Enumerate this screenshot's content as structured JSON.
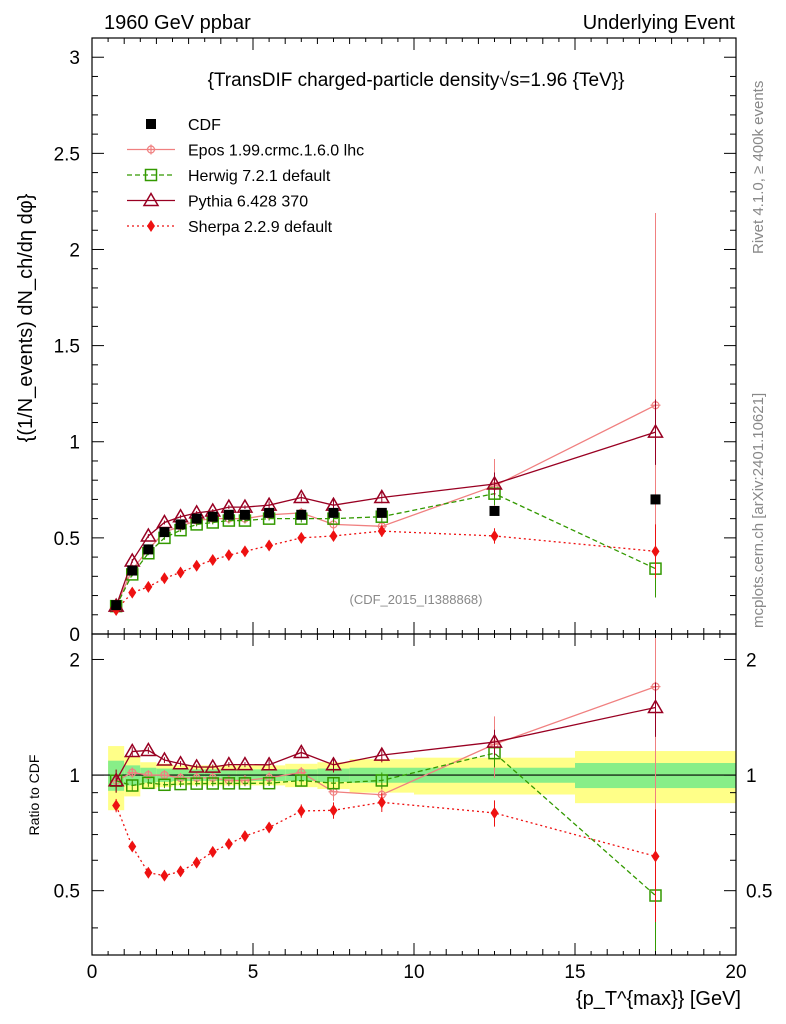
{
  "header": {
    "left": "1960 GeV ppbar",
    "right": "Underlying Event"
  },
  "side_labels": {
    "rivet": "Rivet 4.1.0, ≥ 400k events",
    "mcplots": "mcplots.cern.ch [arXiv:2401.10621]"
  },
  "chart_data": {
    "type": "line",
    "title": "{TransDIF charged-particle density√s=1.96 {TeV}}",
    "watermark": "(CDF_2015_I1388868)",
    "ylabel_main": "{(1/N_events) dN_ch/dη dφ}",
    "ylabel_ratio": "Ratio to CDF",
    "xlabel": "{p_T^{max}} [GeV]",
    "xlim": [
      0,
      20
    ],
    "ylim_main": [
      0,
      3.1
    ],
    "ylim_ratio": [
      0.34,
      2.33
    ],
    "x_ticks": [
      "0",
      "5",
      "10",
      "15",
      "20"
    ],
    "y_ticks_main": [
      "0",
      "0.5",
      "1",
      "1.5",
      "2",
      "2.5",
      "3"
    ],
    "y_ticks_ratio": [
      "0.5",
      "1",
      "2"
    ],
    "legend": [
      {
        "label": "CDF",
        "color": "#000000",
        "marker": "square-filled",
        "dash": "none"
      },
      {
        "label": "Epos 1.99.crmc.1.6.0 lhc",
        "color": "#f08080",
        "marker": "cross-circle",
        "dash": "solid"
      },
      {
        "label": "Herwig 7.2.1 default",
        "color": "#339900",
        "marker": "square-open",
        "dash": "dashed"
      },
      {
        "label": "Pythia 6.428 370",
        "color": "#990022",
        "marker": "triangle-open",
        "dash": "solid"
      },
      {
        "label": "Sherpa 2.2.9 default",
        "color": "#ee1111",
        "marker": "diamond-filled",
        "dash": "dotted"
      }
    ],
    "cdf": {
      "x": [
        0.75,
        1.25,
        1.75,
        2.25,
        2.75,
        3.25,
        3.75,
        4.25,
        4.75,
        5.5,
        6.5,
        7.5,
        9.0,
        12.5,
        17.5
      ],
      "y": [
        0.15,
        0.33,
        0.44,
        0.53,
        0.57,
        0.6,
        0.61,
        0.62,
        0.62,
        0.63,
        0.62,
        0.63,
        0.63,
        0.64,
        0.7
      ],
      "band_edges": [
        0.5,
        1,
        1.5,
        2,
        2.5,
        3,
        3.5,
        4,
        4.5,
        5,
        6,
        7,
        8,
        10,
        15,
        20
      ],
      "stat": [
        0.09,
        0.06,
        0.045,
        0.04,
        0.035,
        0.035,
        0.035,
        0.035,
        0.035,
        0.035,
        0.035,
        0.04,
        0.045,
        0.045,
        0.075
      ],
      "total": [
        0.19,
        0.12,
        0.08,
        0.07,
        0.06,
        0.06,
        0.06,
        0.06,
        0.06,
        0.06,
        0.07,
        0.08,
        0.1,
        0.11,
        0.155
      ]
    },
    "series": [
      {
        "name": "Epos 1.99.crmc.1.6.0 lhc",
        "x": [
          0.75,
          1.25,
          1.75,
          2.25,
          2.75,
          3.25,
          3.75,
          4.25,
          4.75,
          5.5,
          6.5,
          7.5,
          9.0,
          12.5,
          17.5
        ],
        "y": [
          0.145,
          0.335,
          0.44,
          0.53,
          0.56,
          0.59,
          0.6,
          0.6,
          0.6,
          0.62,
          0.63,
          0.57,
          0.56,
          0.77,
          1.19
        ],
        "err": [
          0.01,
          0.01,
          0.01,
          0.01,
          0.01,
          0.01,
          0.01,
          0.01,
          0.02,
          0.02,
          0.02,
          0.03,
          0.04,
          0.14,
          1.0
        ]
      },
      {
        "name": "Herwig 7.2.1 default",
        "x": [
          0.75,
          1.25,
          1.75,
          2.25,
          2.75,
          3.25,
          3.75,
          4.25,
          4.75,
          5.5,
          6.5,
          7.5,
          9.0,
          12.5,
          17.5
        ],
        "y": [
          0.145,
          0.31,
          0.42,
          0.5,
          0.54,
          0.57,
          0.58,
          0.59,
          0.59,
          0.6,
          0.6,
          0.6,
          0.61,
          0.73,
          0.34
        ],
        "err": [
          0.01,
          0.01,
          0.01,
          0.01,
          0.01,
          0.01,
          0.01,
          0.01,
          0.01,
          0.01,
          0.02,
          0.02,
          0.03,
          0.06,
          0.15
        ]
      },
      {
        "name": "Pythia 6.428 370",
        "x": [
          0.75,
          1.25,
          1.75,
          2.25,
          2.75,
          3.25,
          3.75,
          4.25,
          4.75,
          5.5,
          6.5,
          7.5,
          9.0,
          12.5,
          17.5
        ],
        "y": [
          0.145,
          0.38,
          0.51,
          0.58,
          0.61,
          0.63,
          0.64,
          0.66,
          0.66,
          0.67,
          0.71,
          0.67,
          0.71,
          0.78,
          1.05
        ],
        "err": [
          0.01,
          0.01,
          0.01,
          0.01,
          0.01,
          0.01,
          0.01,
          0.01,
          0.01,
          0.02,
          0.02,
          0.03,
          0.03,
          0.06,
          0.17
        ]
      },
      {
        "name": "Sherpa 2.2.9 default",
        "x": [
          0.75,
          1.25,
          1.75,
          2.25,
          2.75,
          3.25,
          3.75,
          4.25,
          4.75,
          5.5,
          6.5,
          7.5,
          9.0,
          12.5,
          17.5
        ],
        "y": [
          0.125,
          0.215,
          0.245,
          0.29,
          0.32,
          0.355,
          0.385,
          0.41,
          0.43,
          0.46,
          0.5,
          0.51,
          0.535,
          0.51,
          0.43
        ],
        "err": [
          0.005,
          0.005,
          0.005,
          0.005,
          0.005,
          0.005,
          0.005,
          0.005,
          0.01,
          0.01,
          0.02,
          0.025,
          0.03,
          0.04,
          0.14
        ]
      }
    ]
  }
}
